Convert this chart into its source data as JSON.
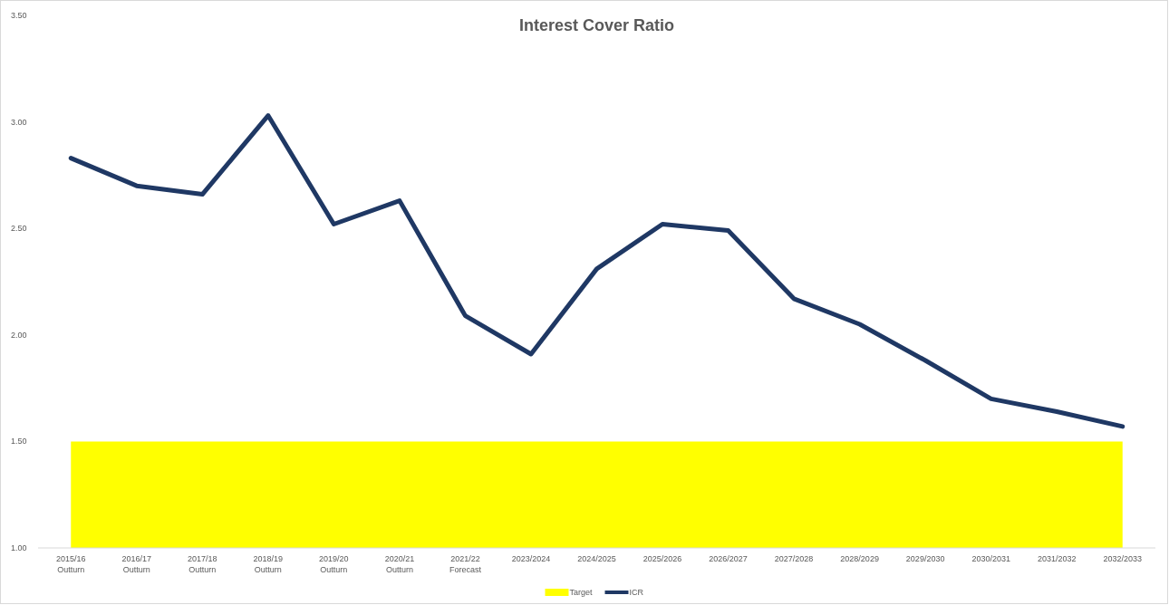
{
  "chart_data": {
    "type": "line",
    "title": "Interest Cover Ratio",
    "categories": [
      "2015/16\nOutturn",
      "2016/17\nOutturn",
      "2017/18\nOutturn",
      "2018/19\nOutturn",
      "2019/20\nOutturn",
      "2020/21\nOutturn",
      "2021/22\nForecast",
      "2023/2024",
      "2024/2025",
      "2025/2026",
      "2026/2027",
      "2027/2028",
      "2028/2029",
      "2029/2030",
      "2030/2031",
      "2031/2032",
      "2032/2033"
    ],
    "series": [
      {
        "name": "Target",
        "type": "area",
        "color": "#ffff00",
        "values": [
          1.5,
          1.5,
          1.5,
          1.5,
          1.5,
          1.5,
          1.5,
          1.5,
          1.5,
          1.5,
          1.5,
          1.5,
          1.5,
          1.5,
          1.5,
          1.5,
          1.5
        ]
      },
      {
        "name": "ICR",
        "color": "#1f3864",
        "values": [
          2.83,
          2.7,
          2.66,
          3.03,
          2.52,
          2.63,
          2.09,
          1.91,
          2.31,
          2.52,
          2.49,
          2.17,
          2.05,
          1.88,
          1.7,
          1.64,
          1.57
        ]
      }
    ],
    "ylim": [
      1,
      3.5
    ],
    "yticks": [
      {
        "value": 1,
        "label": "1.00"
      },
      {
        "value": 1.5,
        "label": "1.50"
      },
      {
        "value": 2,
        "label": "2.00"
      },
      {
        "value": 2.5,
        "label": "2.50"
      },
      {
        "value": 3,
        "label": "3.00"
      },
      {
        "value": 3.5,
        "label": "3.50"
      }
    ],
    "grid": false,
    "legend": "bottom"
  }
}
